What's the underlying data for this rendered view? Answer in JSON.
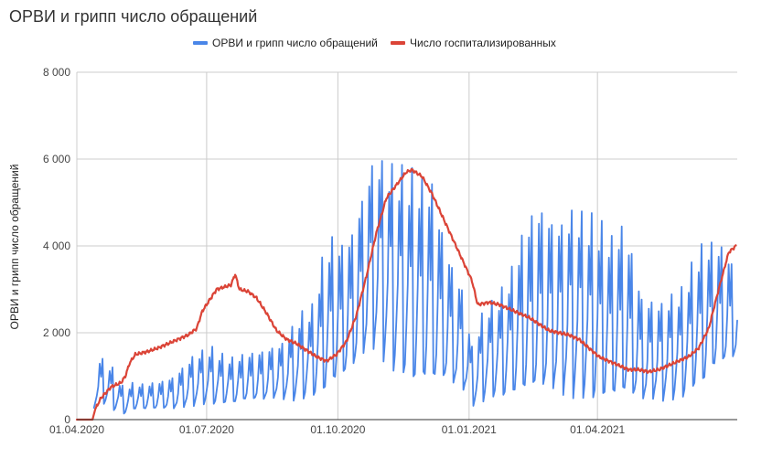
{
  "chart_data": {
    "type": "line",
    "title": "ОРВИ и грипп число обращений",
    "ylabel": "ОРВИ и грипп число обращений",
    "xlabel": "",
    "ylim": [
      0,
      8000
    ],
    "y_ticks": [
      {
        "value": 0,
        "label": "0"
      },
      {
        "value": 2000,
        "label": "2 000"
      },
      {
        "value": 4000,
        "label": "4 000"
      },
      {
        "value": 6000,
        "label": "6 000"
      },
      {
        "value": 8000,
        "label": "8 000"
      }
    ],
    "x_range": [
      "2020-04-01",
      "2021-07-08"
    ],
    "x_ticks": [
      {
        "date": "2020-04-01",
        "label": "01.04.2020"
      },
      {
        "date": "2020-07-01",
        "label": "01.07.2020"
      },
      {
        "date": "2020-10-01",
        "label": "01.10.2020"
      },
      {
        "date": "2021-01-01",
        "label": "01.01.2021"
      },
      {
        "date": "2021-04-01",
        "label": "01.04.2021"
      }
    ],
    "grid": true,
    "legend_position": "top",
    "series": [
      {
        "name": "ОРВИ и грипп число обращений",
        "color": "#4a86e8",
        "style": "weekly-oscillating",
        "high": [
          [
            "2020-04-13",
            1450
          ],
          [
            "2020-04-20",
            1400
          ],
          [
            "2020-04-27",
            1150
          ],
          [
            "2020-05-04",
            700
          ],
          [
            "2020-05-11",
            850
          ],
          [
            "2020-05-18",
            800
          ],
          [
            "2020-05-25",
            850
          ],
          [
            "2020-06-01",
            900
          ],
          [
            "2020-06-08",
            1000
          ],
          [
            "2020-06-15",
            1250
          ],
          [
            "2020-06-22",
            1500
          ],
          [
            "2020-06-29",
            1600
          ],
          [
            "2020-07-06",
            1650
          ],
          [
            "2020-07-13",
            1450
          ],
          [
            "2020-07-20",
            1400
          ],
          [
            "2020-07-27",
            1500
          ],
          [
            "2020-08-03",
            1550
          ],
          [
            "2020-08-10",
            1600
          ],
          [
            "2020-08-17",
            1700
          ],
          [
            "2020-08-24",
            1800
          ],
          [
            "2020-08-31",
            2200
          ],
          [
            "2020-09-07",
            2500
          ],
          [
            "2020-09-14",
            2600
          ],
          [
            "2020-09-21",
            3800
          ],
          [
            "2020-09-28",
            4200
          ],
          [
            "2020-10-05",
            4000
          ],
          [
            "2020-10-12",
            4400
          ],
          [
            "2020-10-19",
            5300
          ],
          [
            "2020-10-26",
            6100
          ],
          [
            "2020-11-02",
            6000
          ],
          [
            "2020-11-09",
            5800
          ],
          [
            "2020-11-16",
            5700
          ],
          [
            "2020-11-23",
            5600
          ],
          [
            "2020-11-30",
            5400
          ],
          [
            "2020-12-07",
            5400
          ],
          [
            "2020-12-14",
            4200
          ],
          [
            "2020-12-21",
            3500
          ],
          [
            "2020-12-28",
            3000
          ],
          [
            "2021-01-04",
            1500
          ],
          [
            "2021-01-11",
            2600
          ],
          [
            "2021-01-18",
            2700
          ],
          [
            "2021-01-25",
            3000
          ],
          [
            "2021-02-01",
            3500
          ],
          [
            "2021-02-08",
            4300
          ],
          [
            "2021-02-15",
            4800
          ],
          [
            "2021-02-22",
            4900
          ],
          [
            "2021-03-01",
            4600
          ],
          [
            "2021-03-08",
            4600
          ],
          [
            "2021-03-15",
            4900
          ],
          [
            "2021-03-22",
            4700
          ],
          [
            "2021-03-29",
            4600
          ],
          [
            "2021-04-05",
            4400
          ],
          [
            "2021-04-12",
            4100
          ],
          [
            "2021-04-19",
            4500
          ],
          [
            "2021-04-26",
            3800
          ],
          [
            "2021-05-03",
            2700
          ],
          [
            "2021-05-10",
            2800
          ],
          [
            "2021-05-17",
            2700
          ],
          [
            "2021-05-24",
            2900
          ],
          [
            "2021-05-31",
            3000
          ],
          [
            "2021-06-07",
            3600
          ],
          [
            "2021-06-14",
            4000
          ],
          [
            "2021-06-21",
            4050
          ],
          [
            "2021-06-28",
            4000
          ],
          [
            "2021-07-05",
            3600
          ]
        ],
        "low": [
          [
            "2020-04-13",
            300
          ],
          [
            "2020-04-20",
            400
          ],
          [
            "2020-04-27",
            250
          ],
          [
            "2020-05-04",
            150
          ],
          [
            "2020-05-11",
            250
          ],
          [
            "2020-05-18",
            250
          ],
          [
            "2020-05-25",
            250
          ],
          [
            "2020-06-01",
            250
          ],
          [
            "2020-06-08",
            250
          ],
          [
            "2020-06-15",
            300
          ],
          [
            "2020-06-22",
            350
          ],
          [
            "2020-06-29",
            400
          ],
          [
            "2020-07-06",
            400
          ],
          [
            "2020-07-13",
            400
          ],
          [
            "2020-07-20",
            400
          ],
          [
            "2020-07-27",
            450
          ],
          [
            "2020-08-03",
            450
          ],
          [
            "2020-08-10",
            450
          ],
          [
            "2020-08-17",
            500
          ],
          [
            "2020-08-24",
            500
          ],
          [
            "2020-08-31",
            500
          ],
          [
            "2020-09-07",
            550
          ],
          [
            "2020-09-14",
            600
          ],
          [
            "2020-09-21",
            700
          ],
          [
            "2020-09-28",
            900
          ],
          [
            "2020-10-05",
            1000
          ],
          [
            "2020-10-12",
            1200
          ],
          [
            "2020-10-19",
            1500
          ],
          [
            "2020-10-26",
            1700
          ],
          [
            "2020-11-02",
            1500
          ],
          [
            "2020-11-09",
            1300
          ],
          [
            "2020-11-16",
            1200
          ],
          [
            "2020-11-23",
            1000
          ],
          [
            "2020-11-30",
            1000
          ],
          [
            "2020-12-07",
            900
          ],
          [
            "2020-12-14",
            900
          ],
          [
            "2020-12-21",
            800
          ],
          [
            "2020-12-28",
            700
          ],
          [
            "2021-01-04",
            350
          ],
          [
            "2021-01-11",
            500
          ],
          [
            "2021-01-18",
            600
          ],
          [
            "2021-01-25",
            600
          ],
          [
            "2021-02-01",
            650
          ],
          [
            "2021-02-08",
            700
          ],
          [
            "2021-02-15",
            700
          ],
          [
            "2021-02-22",
            700
          ],
          [
            "2021-03-01",
            700
          ],
          [
            "2021-03-08",
            650
          ],
          [
            "2021-03-15",
            650
          ],
          [
            "2021-03-22",
            650
          ],
          [
            "2021-03-29",
            600
          ],
          [
            "2021-04-05",
            600
          ],
          [
            "2021-04-12",
            600
          ],
          [
            "2021-04-19",
            600
          ],
          [
            "2021-04-26",
            500
          ],
          [
            "2021-05-03",
            450
          ],
          [
            "2021-05-10",
            500
          ],
          [
            "2021-05-17",
            500
          ],
          [
            "2021-05-24",
            550
          ],
          [
            "2021-05-31",
            600
          ],
          [
            "2021-06-07",
            800
          ],
          [
            "2021-06-14",
            900
          ],
          [
            "2021-06-21",
            1200
          ],
          [
            "2021-06-28",
            1300
          ],
          [
            "2021-07-05",
            1400
          ]
        ]
      },
      {
        "name": "Число госпитализированных",
        "color": "#db4437",
        "style": "smooth",
        "points": [
          [
            "2020-04-01",
            0
          ],
          [
            "2020-04-12",
            0
          ],
          [
            "2020-04-14",
            250
          ],
          [
            "2020-04-18",
            500
          ],
          [
            "2020-04-25",
            750
          ],
          [
            "2020-05-02",
            850
          ],
          [
            "2020-05-05",
            1000
          ],
          [
            "2020-05-08",
            1300
          ],
          [
            "2020-05-12",
            1500
          ],
          [
            "2020-05-20",
            1560
          ],
          [
            "2020-05-28",
            1650
          ],
          [
            "2020-06-04",
            1750
          ],
          [
            "2020-06-11",
            1850
          ],
          [
            "2020-06-18",
            1950
          ],
          [
            "2020-06-24",
            2100
          ],
          [
            "2020-06-28",
            2500
          ],
          [
            "2020-07-03",
            2750
          ],
          [
            "2020-07-08",
            3000
          ],
          [
            "2020-07-13",
            3050
          ],
          [
            "2020-07-18",
            3100
          ],
          [
            "2020-07-21",
            3350
          ],
          [
            "2020-07-24",
            3000
          ],
          [
            "2020-07-30",
            2950
          ],
          [
            "2020-08-05",
            2800
          ],
          [
            "2020-08-12",
            2450
          ],
          [
            "2020-08-19",
            2050
          ],
          [
            "2020-08-26",
            1850
          ],
          [
            "2020-09-02",
            1750
          ],
          [
            "2020-09-09",
            1600
          ],
          [
            "2020-09-16",
            1450
          ],
          [
            "2020-09-23",
            1350
          ],
          [
            "2020-09-30",
            1500
          ],
          [
            "2020-10-07",
            1800
          ],
          [
            "2020-10-14",
            2400
          ],
          [
            "2020-10-21",
            3300
          ],
          [
            "2020-10-28",
            4300
          ],
          [
            "2020-11-04",
            5100
          ],
          [
            "2020-11-11",
            5400
          ],
          [
            "2020-11-18",
            5700
          ],
          [
            "2020-11-22",
            5750
          ],
          [
            "2020-11-29",
            5600
          ],
          [
            "2020-12-06",
            5200
          ],
          [
            "2020-12-13",
            4700
          ],
          [
            "2020-12-20",
            4200
          ],
          [
            "2020-12-27",
            3700
          ],
          [
            "2021-01-03",
            3200
          ],
          [
            "2021-01-07",
            2650
          ],
          [
            "2021-01-15",
            2700
          ],
          [
            "2021-01-22",
            2650
          ],
          [
            "2021-01-29",
            2550
          ],
          [
            "2021-02-05",
            2450
          ],
          [
            "2021-02-12",
            2350
          ],
          [
            "2021-02-19",
            2200
          ],
          [
            "2021-02-26",
            2050
          ],
          [
            "2021-03-05",
            2000
          ],
          [
            "2021-03-12",
            1950
          ],
          [
            "2021-03-19",
            1850
          ],
          [
            "2021-03-26",
            1650
          ],
          [
            "2021-04-02",
            1450
          ],
          [
            "2021-04-09",
            1350
          ],
          [
            "2021-04-16",
            1250
          ],
          [
            "2021-04-23",
            1150
          ],
          [
            "2021-04-30",
            1150
          ],
          [
            "2021-05-07",
            1100
          ],
          [
            "2021-05-14",
            1150
          ],
          [
            "2021-05-21",
            1250
          ],
          [
            "2021-05-28",
            1350
          ],
          [
            "2021-06-04",
            1450
          ],
          [
            "2021-06-11",
            1650
          ],
          [
            "2021-06-18",
            2100
          ],
          [
            "2021-06-25",
            3000
          ],
          [
            "2021-07-02",
            3850
          ],
          [
            "2021-07-07",
            4000
          ]
        ]
      }
    ]
  }
}
